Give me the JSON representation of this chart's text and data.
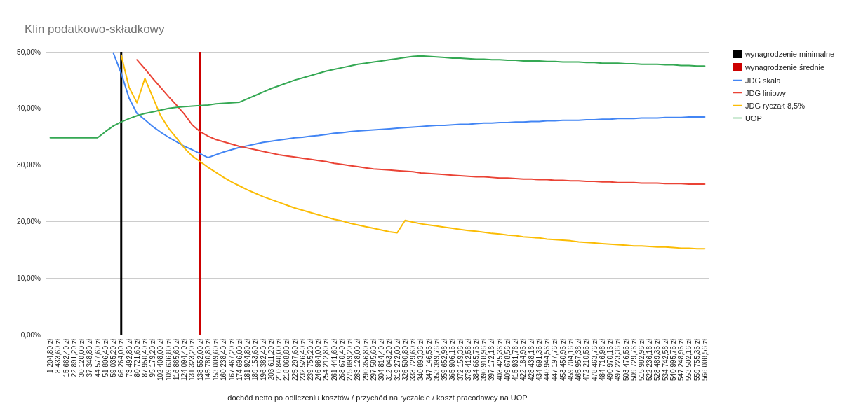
{
  "chart_data": {
    "type": "line",
    "title": "Klin podatkowo-składkowy",
    "xlabel": "dochód netto po odliczeniu kosztów / przychód na ryczałcie / koszt pracodawcy na UOP",
    "categories": [
      "1 204,80 zł",
      "8 433,60 zł",
      "15 662,40 zł",
      "22 891,20 zł",
      "30 120,00 zł",
      "37 348,80 zł",
      "44 577,60 zł",
      "51 806,40 zł",
      "59 035,20 zł",
      "66 264,00 zł",
      "73 492,80 zł",
      "80 721,60 zł",
      "87 950,40 zł",
      "95 179,20 zł",
      "102 408,00 zł",
      "109 636,80 zł",
      "116 865,60 zł",
      "124 094,40 zł",
      "131 323,20 zł",
      "138 552,00 zł",
      "145 780,80 zł",
      "153 009,60 zł",
      "160 238,40 zł",
      "167 467,20 zł",
      "174 696,00 zł",
      "181 924,80 zł",
      "189 153,60 zł",
      "196 382,40 zł",
      "203 611,20 zł",
      "210 840,00 zł",
      "218 068,80 zł",
      "225 297,60 zł",
      "232 526,40 zł",
      "239 755,20 zł",
      "246 984,00 zł",
      "254 212,80 zł",
      "261 441,60 zł",
      "268 670,40 zł",
      "275 899,20 zł",
      "283 128,00 zł",
      "290 356,80 zł",
      "297 585,60 zł",
      "304 814,40 zł",
      "312 043,20 zł",
      "319 272,00 zł",
      "326 500,80 zł",
      "333 729,60 zł",
      "340 893,36 zł",
      "347 146,56 zł",
      "353 399,76 zł",
      "359 652,96 zł",
      "365 906,16 zł",
      "372 159,36 zł",
      "378 412,56 zł",
      "384 665,76 zł",
      "390 918,96 zł",
      "397 172,16 zł",
      "403 425,36 zł",
      "409 678,56 zł",
      "415 931,76 zł",
      "422 184,96 zł",
      "428 438,16 zł",
      "434 691,36 zł",
      "440 944,56 zł",
      "447 197,76 zł",
      "453 450,96 zł",
      "459 704,16 zł",
      "465 957,36 zł",
      "472 210,56 zł",
      "478 463,76 zł",
      "484 716,96 zł",
      "490 970,16 zł",
      "497 223,36 zł",
      "503 476,56 zł",
      "509 729,76 zł",
      "515 982,96 zł",
      "522 236,16 zł",
      "528 489,36 zł",
      "534 742,56 zł",
      "540 995,76 zł",
      "547 248,96 zł",
      "553 502,16 zł",
      "559 755,36 zł",
      "566 008,56 zł"
    ],
    "series": [
      {
        "name": "wynagrodzenie minimalne",
        "type": "bar",
        "color": "#000000",
        "values": [
          null,
          null,
          null,
          null,
          null,
          null,
          null,
          null,
          null,
          50,
          null,
          null,
          null,
          null,
          null,
          null,
          null,
          null,
          null,
          null,
          null,
          null,
          null,
          null,
          null,
          null,
          null,
          null,
          null,
          null,
          null,
          null,
          null,
          null,
          null,
          null,
          null,
          null,
          null,
          null,
          null,
          null,
          null,
          null,
          null,
          null,
          null,
          null,
          null,
          null,
          null,
          null,
          null,
          null,
          null,
          null,
          null,
          null,
          null,
          null,
          null,
          null,
          null,
          null,
          null,
          null,
          null,
          null,
          null,
          null,
          null,
          null,
          null,
          null,
          null,
          null,
          null,
          null,
          null,
          null,
          null,
          null,
          null,
          null
        ]
      },
      {
        "name": "wynagrodzenie średnie",
        "type": "bar",
        "color": "#cc0000",
        "values": [
          null,
          null,
          null,
          null,
          null,
          null,
          null,
          null,
          null,
          null,
          null,
          null,
          null,
          null,
          null,
          null,
          null,
          null,
          null,
          50,
          null,
          null,
          null,
          null,
          null,
          null,
          null,
          null,
          null,
          null,
          null,
          null,
          null,
          null,
          null,
          null,
          null,
          null,
          null,
          null,
          null,
          null,
          null,
          null,
          null,
          null,
          null,
          null,
          null,
          null,
          null,
          null,
          null,
          null,
          null,
          null,
          null,
          null,
          null,
          null,
          null,
          null,
          null,
          null,
          null,
          null,
          null,
          null,
          null,
          null,
          null,
          null,
          null,
          null,
          null,
          null,
          null,
          null,
          null,
          null,
          null,
          null,
          null,
          null
        ]
      },
      {
        "name": "JDG skala",
        "color": "#4285f4",
        "values": [
          null,
          null,
          null,
          null,
          null,
          null,
          null,
          null,
          49.8,
          46.2,
          41.8,
          39.1,
          38.0,
          36.8,
          35.8,
          34.9,
          34.1,
          33.3,
          32.7,
          32.0,
          31.3,
          31.8,
          32.3,
          32.7,
          33.1,
          33.4,
          33.7,
          34.0,
          34.2,
          34.4,
          34.6,
          34.8,
          34.9,
          35.1,
          35.2,
          35.4,
          35.6,
          35.7,
          35.9,
          36.0,
          36.1,
          36.2,
          36.3,
          36.4,
          36.5,
          36.6,
          36.7,
          36.8,
          36.9,
          37.0,
          37.0,
          37.1,
          37.2,
          37.2,
          37.3,
          37.4,
          37.4,
          37.5,
          37.5,
          37.6,
          37.6,
          37.7,
          37.7,
          37.8,
          37.8,
          37.9,
          37.9,
          37.9,
          38.0,
          38.0,
          38.1,
          38.1,
          38.2,
          38.2,
          38.2,
          38.3,
          38.3,
          38.3,
          38.4,
          38.4,
          38.4,
          38.5,
          38.5,
          38.5
        ]
      },
      {
        "name": "JDG liniowy",
        "color": "#ea4335",
        "values": [
          null,
          null,
          null,
          null,
          null,
          null,
          null,
          null,
          null,
          null,
          null,
          48.6,
          47.0,
          45.3,
          43.7,
          42.1,
          40.6,
          39.0,
          37.1,
          35.9,
          35.1,
          34.5,
          34.1,
          33.7,
          33.3,
          33.0,
          32.7,
          32.4,
          32.1,
          31.8,
          31.6,
          31.4,
          31.2,
          31.0,
          30.8,
          30.6,
          30.3,
          30.1,
          29.9,
          29.7,
          29.5,
          29.3,
          29.2,
          29.1,
          29.0,
          28.9,
          28.8,
          28.6,
          28.5,
          28.4,
          28.3,
          28.2,
          28.1,
          28.0,
          27.9,
          27.9,
          27.8,
          27.7,
          27.7,
          27.6,
          27.5,
          27.5,
          27.4,
          27.4,
          27.3,
          27.3,
          27.2,
          27.2,
          27.1,
          27.1,
          27.0,
          27.0,
          26.9,
          26.9,
          26.9,
          26.8,
          26.8,
          26.8,
          26.7,
          26.7,
          26.7,
          26.6,
          26.6,
          26.6
        ]
      },
      {
        "name": "JDG ryczałt 8,5%",
        "color": "#fbbc04",
        "values": [
          null,
          null,
          null,
          null,
          null,
          null,
          null,
          null,
          null,
          49.4,
          43.7,
          41.0,
          45.3,
          42.0,
          38.7,
          36.5,
          34.8,
          33.0,
          31.6,
          30.6,
          29.6,
          28.7,
          27.8,
          27.0,
          26.3,
          25.6,
          25.0,
          24.4,
          23.9,
          23.4,
          22.9,
          22.4,
          22.0,
          21.6,
          21.2,
          20.8,
          20.4,
          20.1,
          19.7,
          19.4,
          19.1,
          18.8,
          18.5,
          18.2,
          18.0,
          20.2,
          19.9,
          19.6,
          19.4,
          19.2,
          19.0,
          18.8,
          18.6,
          18.4,
          18.3,
          18.1,
          17.9,
          17.8,
          17.6,
          17.5,
          17.3,
          17.2,
          17.1,
          16.9,
          16.8,
          16.7,
          16.6,
          16.4,
          16.3,
          16.2,
          16.1,
          16.0,
          15.9,
          15.8,
          15.7,
          15.7,
          15.6,
          15.5,
          15.5,
          15.4,
          15.3,
          15.3,
          15.2,
          15.2
        ]
      },
      {
        "name": "UOP",
        "color": "#34a853",
        "values": [
          34.8,
          34.8,
          34.8,
          34.8,
          34.8,
          34.8,
          34.8,
          35.9,
          36.9,
          37.6,
          38.2,
          38.7,
          39.1,
          39.4,
          39.7,
          40.0,
          40.2,
          40.3,
          40.4,
          40.5,
          40.6,
          40.8,
          40.9,
          41.0,
          41.1,
          41.7,
          42.3,
          42.9,
          43.5,
          44.0,
          44.5,
          45.0,
          45.4,
          45.8,
          46.2,
          46.6,
          46.9,
          47.2,
          47.5,
          47.8,
          48.0,
          48.2,
          48.4,
          48.6,
          48.8,
          49.0,
          49.2,
          49.3,
          49.2,
          49.1,
          49.0,
          48.9,
          48.9,
          48.8,
          48.7,
          48.7,
          48.6,
          48.6,
          48.5,
          48.5,
          48.4,
          48.4,
          48.4,
          48.3,
          48.3,
          48.2,
          48.2,
          48.2,
          48.1,
          48.1,
          48.0,
          48.0,
          48.0,
          47.9,
          47.9,
          47.8,
          47.8,
          47.8,
          47.7,
          47.7,
          47.6,
          47.6,
          47.5,
          47.5
        ]
      }
    ],
    "ylim": [
      0,
      50
    ],
    "yticks": [
      {
        "value": 0,
        "label": "0,00%"
      },
      {
        "value": 10,
        "label": "10,00%"
      },
      {
        "value": 20,
        "label": "20,00%"
      },
      {
        "value": 30,
        "label": "30,00%"
      },
      {
        "value": 40,
        "label": "40,00%"
      },
      {
        "value": 50,
        "label": "50,00%"
      }
    ],
    "grid": "y",
    "legend": "right",
    "marker": "none"
  }
}
